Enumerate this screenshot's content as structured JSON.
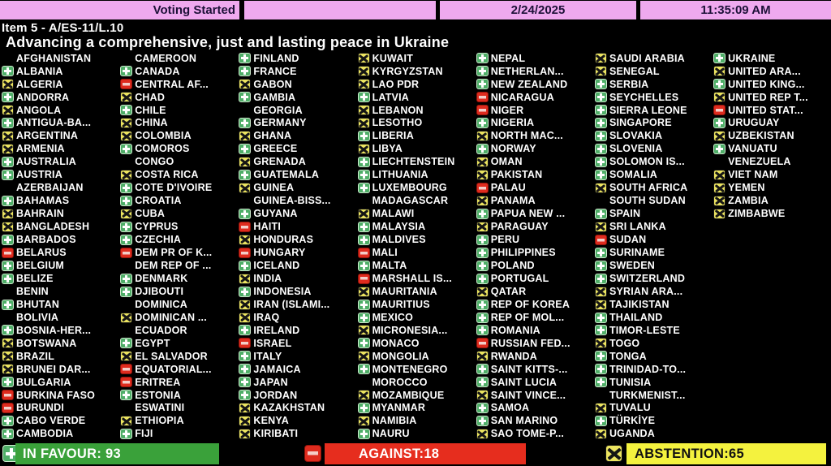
{
  "header": {
    "status": "Voting Started",
    "date": "2/24/2025",
    "time": "11:35:09 AM"
  },
  "title": {
    "item": "Item 5 - A/ES-11/L.10",
    "subject": "Advancing a comprehensive, just and lasting peace in Ukraine"
  },
  "summary": {
    "in_favour_label": "IN FAVOUR: 93",
    "against_label": "AGAINST:18",
    "abstention_label": "ABSTENTION:65",
    "in_favour_count": 93,
    "against_count": 18,
    "abstention_count": 65
  },
  "colors": {
    "topbar-pink": "#efa9ef",
    "topbar-text": "#1d1038",
    "favour-green": "#4fae68",
    "against-red": "#de2b1e",
    "abstain-yellow": "#ece460",
    "bar-green": "#3aa13a",
    "bar-red": "#e62d1e",
    "bar-yellow": "#f4f23e"
  },
  "vote_legend": {
    "favour": "green-plus-icon",
    "against": "red-minus-icon",
    "abstain": "yellow-x-icon",
    "none": "no-icon-absent"
  },
  "columns": [
    [
      {
        "name": "AFGHANISTAN",
        "vote": "none"
      },
      {
        "name": "ALBANIA",
        "vote": "favour"
      },
      {
        "name": "ALGERIA",
        "vote": "abstain"
      },
      {
        "name": "ANDORRA",
        "vote": "favour"
      },
      {
        "name": "ANGOLA",
        "vote": "abstain"
      },
      {
        "name": "ANTIGUA-BA...",
        "vote": "favour"
      },
      {
        "name": "ARGENTINA",
        "vote": "abstain"
      },
      {
        "name": "ARMENIA",
        "vote": "abstain"
      },
      {
        "name": "AUSTRALIA",
        "vote": "favour"
      },
      {
        "name": "AUSTRIA",
        "vote": "favour"
      },
      {
        "name": "AZERBAIJAN",
        "vote": "none"
      },
      {
        "name": "BAHAMAS",
        "vote": "favour"
      },
      {
        "name": "BAHRAIN",
        "vote": "abstain"
      },
      {
        "name": "BANGLADESH",
        "vote": "abstain"
      },
      {
        "name": "BARBADOS",
        "vote": "favour"
      },
      {
        "name": "BELARUS",
        "vote": "against"
      },
      {
        "name": "BELGIUM",
        "vote": "favour"
      },
      {
        "name": "BELIZE",
        "vote": "favour"
      },
      {
        "name": "BENIN",
        "vote": "none"
      },
      {
        "name": "BHUTAN",
        "vote": "favour"
      },
      {
        "name": "BOLIVIA",
        "vote": "none"
      },
      {
        "name": "BOSNIA-HER...",
        "vote": "favour"
      },
      {
        "name": "BOTSWANA",
        "vote": "abstain"
      },
      {
        "name": "BRAZIL",
        "vote": "abstain"
      },
      {
        "name": "BRUNEI DAR...",
        "vote": "abstain"
      },
      {
        "name": "BULGARIA",
        "vote": "favour"
      },
      {
        "name": "BURKINA FASO",
        "vote": "against"
      },
      {
        "name": "BURUNDI",
        "vote": "against"
      },
      {
        "name": "CABO VERDE",
        "vote": "favour"
      },
      {
        "name": "CAMBODIA",
        "vote": "favour"
      }
    ],
    [
      {
        "name": "CAMEROON",
        "vote": "none"
      },
      {
        "name": "CANADA",
        "vote": "favour"
      },
      {
        "name": "CENTRAL AF...",
        "vote": "against"
      },
      {
        "name": "CHAD",
        "vote": "abstain"
      },
      {
        "name": "CHILE",
        "vote": "favour"
      },
      {
        "name": "CHINA",
        "vote": "abstain"
      },
      {
        "name": "COLOMBIA",
        "vote": "abstain"
      },
      {
        "name": "COMOROS",
        "vote": "favour"
      },
      {
        "name": "CONGO",
        "vote": "none"
      },
      {
        "name": "COSTA RICA",
        "vote": "abstain"
      },
      {
        "name": "COTE D'IVOIRE",
        "vote": "favour"
      },
      {
        "name": "CROATIA",
        "vote": "favour"
      },
      {
        "name": "CUBA",
        "vote": "abstain"
      },
      {
        "name": "CYPRUS",
        "vote": "favour"
      },
      {
        "name": "CZECHIA",
        "vote": "favour"
      },
      {
        "name": "DEM PR OF K...",
        "vote": "against"
      },
      {
        "name": "DEM REP OF ...",
        "vote": "none"
      },
      {
        "name": "DENMARK",
        "vote": "favour"
      },
      {
        "name": "DJIBOUTI",
        "vote": "favour"
      },
      {
        "name": "DOMINICA",
        "vote": "none"
      },
      {
        "name": "DOMINICAN ...",
        "vote": "abstain"
      },
      {
        "name": "ECUADOR",
        "vote": "none"
      },
      {
        "name": "EGYPT",
        "vote": "favour"
      },
      {
        "name": "EL SALVADOR",
        "vote": "abstain"
      },
      {
        "name": "EQUATORIAL...",
        "vote": "against"
      },
      {
        "name": "ERITREA",
        "vote": "against"
      },
      {
        "name": "ESTONIA",
        "vote": "favour"
      },
      {
        "name": "ESWATINI",
        "vote": "none"
      },
      {
        "name": "ETHIOPIA",
        "vote": "abstain"
      },
      {
        "name": "FIJI",
        "vote": "favour"
      }
    ],
    [
      {
        "name": "FINLAND",
        "vote": "favour"
      },
      {
        "name": "FRANCE",
        "vote": "favour"
      },
      {
        "name": "GABON",
        "vote": "abstain"
      },
      {
        "name": "GAMBIA",
        "vote": "favour"
      },
      {
        "name": "GEORGIA",
        "vote": "none"
      },
      {
        "name": "GERMANY",
        "vote": "favour"
      },
      {
        "name": "GHANA",
        "vote": "abstain"
      },
      {
        "name": "GREECE",
        "vote": "favour"
      },
      {
        "name": "GRENADA",
        "vote": "abstain"
      },
      {
        "name": "GUATEMALA",
        "vote": "favour"
      },
      {
        "name": "GUINEA",
        "vote": "abstain"
      },
      {
        "name": "GUINEA-BISS...",
        "vote": "none"
      },
      {
        "name": "GUYANA",
        "vote": "favour"
      },
      {
        "name": "HAITI",
        "vote": "against"
      },
      {
        "name": "HONDURAS",
        "vote": "abstain"
      },
      {
        "name": "HUNGARY",
        "vote": "against"
      },
      {
        "name": "ICELAND",
        "vote": "favour"
      },
      {
        "name": "INDIA",
        "vote": "abstain"
      },
      {
        "name": "INDONESIA",
        "vote": "favour"
      },
      {
        "name": "IRAN (ISLAMI...",
        "vote": "abstain"
      },
      {
        "name": "IRAQ",
        "vote": "abstain"
      },
      {
        "name": "IRELAND",
        "vote": "favour"
      },
      {
        "name": "ISRAEL",
        "vote": "against"
      },
      {
        "name": "ITALY",
        "vote": "favour"
      },
      {
        "name": "JAMAICA",
        "vote": "favour"
      },
      {
        "name": "JAPAN",
        "vote": "favour"
      },
      {
        "name": "JORDAN",
        "vote": "favour"
      },
      {
        "name": "KAZAKHSTAN",
        "vote": "abstain"
      },
      {
        "name": "KENYA",
        "vote": "abstain"
      },
      {
        "name": "KIRIBATI",
        "vote": "abstain"
      }
    ],
    [
      {
        "name": "KUWAIT",
        "vote": "abstain"
      },
      {
        "name": "KYRGYZSTAN",
        "vote": "abstain"
      },
      {
        "name": "LAO PDR",
        "vote": "abstain"
      },
      {
        "name": "LATVIA",
        "vote": "favour"
      },
      {
        "name": "LEBANON",
        "vote": "abstain"
      },
      {
        "name": "LESOTHO",
        "vote": "abstain"
      },
      {
        "name": "LIBERIA",
        "vote": "favour"
      },
      {
        "name": "LIBYA",
        "vote": "abstain"
      },
      {
        "name": "LIECHTENSTEIN",
        "vote": "favour"
      },
      {
        "name": "LITHUANIA",
        "vote": "favour"
      },
      {
        "name": "LUXEMBOURG",
        "vote": "favour"
      },
      {
        "name": "MADAGASCAR",
        "vote": "none"
      },
      {
        "name": "MALAWI",
        "vote": "abstain"
      },
      {
        "name": "MALAYSIA",
        "vote": "favour"
      },
      {
        "name": "MALDIVES",
        "vote": "favour"
      },
      {
        "name": "MALI",
        "vote": "against"
      },
      {
        "name": "MALTA",
        "vote": "favour"
      },
      {
        "name": "MARSHALL IS...",
        "vote": "against"
      },
      {
        "name": "MAURITANIA",
        "vote": "abstain"
      },
      {
        "name": "MAURITIUS",
        "vote": "favour"
      },
      {
        "name": "MEXICO",
        "vote": "favour"
      },
      {
        "name": "MICRONESIA...",
        "vote": "abstain"
      },
      {
        "name": "MONACO",
        "vote": "favour"
      },
      {
        "name": "MONGOLIA",
        "vote": "abstain"
      },
      {
        "name": "MONTENEGRO",
        "vote": "favour"
      },
      {
        "name": "MOROCCO",
        "vote": "none"
      },
      {
        "name": "MOZAMBIQUE",
        "vote": "abstain"
      },
      {
        "name": "MYANMAR",
        "vote": "favour"
      },
      {
        "name": "NAMIBIA",
        "vote": "abstain"
      },
      {
        "name": "NAURU",
        "vote": "favour"
      }
    ],
    [
      {
        "name": "NEPAL",
        "vote": "favour"
      },
      {
        "name": "NETHERLAN...",
        "vote": "favour"
      },
      {
        "name": "NEW ZEALAND",
        "vote": "favour"
      },
      {
        "name": "NICARAGUA",
        "vote": "against"
      },
      {
        "name": "NIGER",
        "vote": "against"
      },
      {
        "name": "NIGERIA",
        "vote": "favour"
      },
      {
        "name": "NORTH MAC...",
        "vote": "abstain"
      },
      {
        "name": "NORWAY",
        "vote": "favour"
      },
      {
        "name": "OMAN",
        "vote": "abstain"
      },
      {
        "name": "PAKISTAN",
        "vote": "abstain"
      },
      {
        "name": "PALAU",
        "vote": "against"
      },
      {
        "name": "PANAMA",
        "vote": "abstain"
      },
      {
        "name": "PAPUA NEW ...",
        "vote": "favour"
      },
      {
        "name": "PARAGUAY",
        "vote": "abstain"
      },
      {
        "name": "PERU",
        "vote": "favour"
      },
      {
        "name": "PHILIPPINES",
        "vote": "favour"
      },
      {
        "name": "POLAND",
        "vote": "favour"
      },
      {
        "name": "PORTUGAL",
        "vote": "favour"
      },
      {
        "name": "QATAR",
        "vote": "abstain"
      },
      {
        "name": "REP OF KOREA",
        "vote": "favour"
      },
      {
        "name": "REP OF MOL...",
        "vote": "favour"
      },
      {
        "name": "ROMANIA",
        "vote": "favour"
      },
      {
        "name": "RUSSIAN FED...",
        "vote": "against"
      },
      {
        "name": "RWANDA",
        "vote": "abstain"
      },
      {
        "name": "SAINT KITTS-...",
        "vote": "favour"
      },
      {
        "name": "SAINT LUCIA",
        "vote": "favour"
      },
      {
        "name": "SAINT VINCE...",
        "vote": "abstain"
      },
      {
        "name": "SAMOA",
        "vote": "favour"
      },
      {
        "name": "SAN MARINO",
        "vote": "favour"
      },
      {
        "name": "SAO TOME-P...",
        "vote": "abstain"
      }
    ],
    [
      {
        "name": "SAUDI ARABIA",
        "vote": "abstain"
      },
      {
        "name": "SENEGAL",
        "vote": "abstain"
      },
      {
        "name": "SERBIA",
        "vote": "favour"
      },
      {
        "name": "SEYCHELLES",
        "vote": "favour"
      },
      {
        "name": "SIERRA LEONE",
        "vote": "favour"
      },
      {
        "name": "SINGAPORE",
        "vote": "favour"
      },
      {
        "name": "SLOVAKIA",
        "vote": "favour"
      },
      {
        "name": "SLOVENIA",
        "vote": "favour"
      },
      {
        "name": "SOLOMON IS...",
        "vote": "favour"
      },
      {
        "name": "SOMALIA",
        "vote": "favour"
      },
      {
        "name": "SOUTH AFRICA",
        "vote": "abstain"
      },
      {
        "name": "SOUTH SUDAN",
        "vote": "none"
      },
      {
        "name": "SPAIN",
        "vote": "favour"
      },
      {
        "name": "SRI LANKA",
        "vote": "abstain"
      },
      {
        "name": "SUDAN",
        "vote": "against"
      },
      {
        "name": "SURINAME",
        "vote": "favour"
      },
      {
        "name": "SWEDEN",
        "vote": "favour"
      },
      {
        "name": "SWITZERLAND",
        "vote": "favour"
      },
      {
        "name": "SYRIAN ARA...",
        "vote": "abstain"
      },
      {
        "name": "TAJIKISTAN",
        "vote": "abstain"
      },
      {
        "name": "THAILAND",
        "vote": "favour"
      },
      {
        "name": "TIMOR-LESTE",
        "vote": "favour"
      },
      {
        "name": "TOGO",
        "vote": "abstain"
      },
      {
        "name": "TONGA",
        "vote": "favour"
      },
      {
        "name": "TRINIDAD-TO...",
        "vote": "favour"
      },
      {
        "name": "TUNISIA",
        "vote": "favour"
      },
      {
        "name": "TURKMENIST...",
        "vote": "none"
      },
      {
        "name": "TUVALU",
        "vote": "abstain"
      },
      {
        "name": "TÜRKİYE",
        "vote": "favour"
      },
      {
        "name": "UGANDA",
        "vote": "abstain"
      }
    ],
    [
      {
        "name": "UKRAINE",
        "vote": "favour"
      },
      {
        "name": "UNITED ARA...",
        "vote": "abstain"
      },
      {
        "name": "UNITED KING...",
        "vote": "favour"
      },
      {
        "name": "UNITED REP T...",
        "vote": "abstain"
      },
      {
        "name": "UNITED STAT...",
        "vote": "against"
      },
      {
        "name": "URUGUAY",
        "vote": "favour"
      },
      {
        "name": "UZBEKISTAN",
        "vote": "abstain"
      },
      {
        "name": "VANUATU",
        "vote": "favour"
      },
      {
        "name": "VENEZUELA",
        "vote": "none"
      },
      {
        "name": "VIET NAM",
        "vote": "abstain"
      },
      {
        "name": "YEMEN",
        "vote": "abstain"
      },
      {
        "name": "ZAMBIA",
        "vote": "abstain"
      },
      {
        "name": "ZIMBABWE",
        "vote": "abstain"
      }
    ]
  ]
}
